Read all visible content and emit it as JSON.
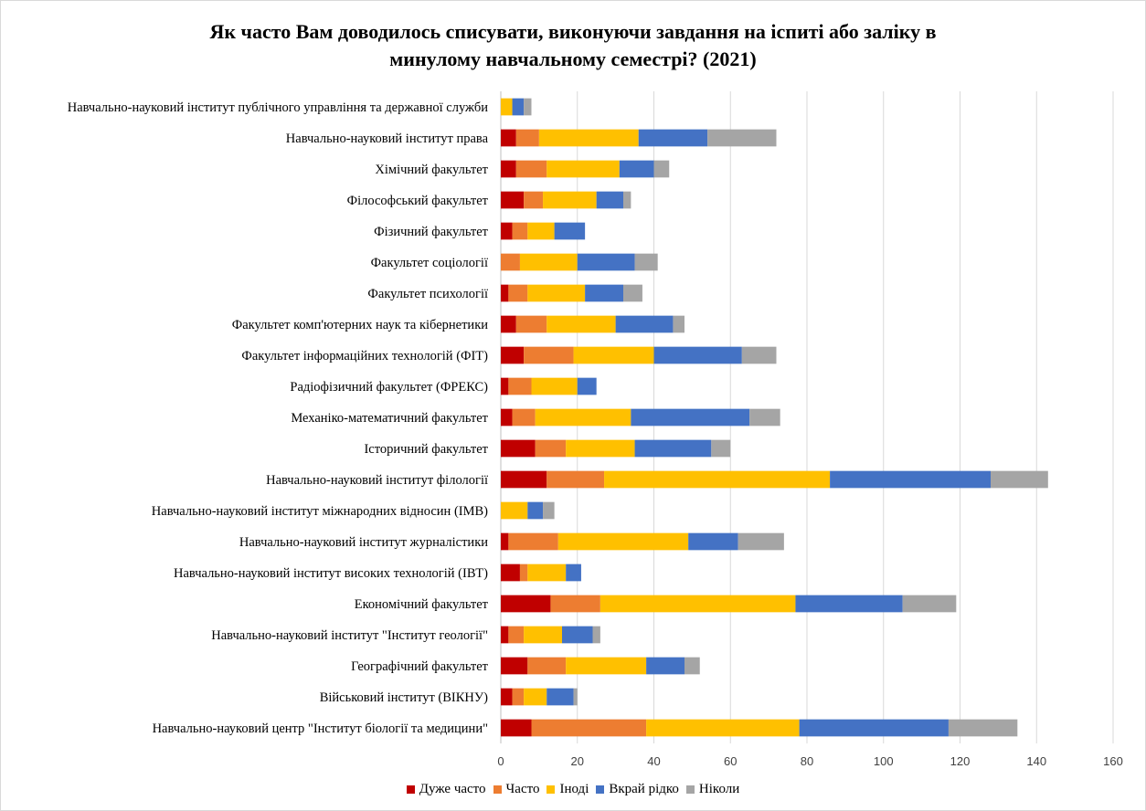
{
  "chart_data": {
    "type": "bar",
    "orientation": "horizontal",
    "stacked": true,
    "title_line1": "Як часто Вам доводилось списувати, виконуючи завдання на іспиті або заліку в",
    "title_line2": "минулому навчальному семестрі? (2021)",
    "xlim": [
      0,
      160
    ],
    "xticks": [
      0,
      20,
      40,
      60,
      80,
      100,
      120,
      140,
      160
    ],
    "grid": true,
    "legend_position": "bottom",
    "categories": [
      "Навчально-науковий інститут публічного управління та державної служби",
      "Навчально-науковий інститут права",
      "Хімічний факультет",
      "Філософський факультет",
      "Фізичний факультет",
      "Факультет соціології",
      "Факультет психології",
      "Факультет комп'ютерних наук та кібернетики",
      "Факультет інформаційних технологій (ФІТ)",
      "Радіофізичний факультет (ФРЕКС)",
      "Механіко-математичний факультет",
      "Історичний факультет",
      "Навчально-науковий інститут філології",
      "Навчально-науковий інститут міжнародних відносин (ІМВ)",
      "Навчально-науковий інститут журналістики",
      "Навчально-науковий інститут високих технологій (ІВТ)",
      "Економічний факультет",
      "Навчально-науковий інститут \"Інститут геології\"",
      "Географічний факультет",
      "Військовий інститут (ВІКНУ)",
      "Навчально-науковий центр \"Інститут біології та медицини\""
    ],
    "series": [
      {
        "name": "Дуже часто",
        "color": "#c00000",
        "values": [
          0,
          4,
          4,
          6,
          3,
          0,
          2,
          4,
          6,
          2,
          3,
          9,
          12,
          0,
          2,
          5,
          13,
          2,
          7,
          3,
          8
        ]
      },
      {
        "name": "Часто",
        "color": "#ed7d31",
        "values": [
          0,
          6,
          8,
          5,
          4,
          5,
          5,
          8,
          13,
          6,
          6,
          8,
          15,
          0,
          13,
          2,
          13,
          4,
          10,
          3,
          30
        ]
      },
      {
        "name": "Іноді",
        "color": "#ffc000",
        "values": [
          3,
          26,
          19,
          14,
          7,
          15,
          15,
          18,
          21,
          12,
          25,
          18,
          59,
          7,
          34,
          10,
          51,
          10,
          21,
          6,
          40
        ]
      },
      {
        "name": "Вкрай рідко",
        "color": "#4472c4",
        "values": [
          3,
          18,
          9,
          7,
          8,
          15,
          10,
          15,
          23,
          5,
          31,
          20,
          42,
          4,
          13,
          4,
          28,
          8,
          10,
          7,
          39
        ]
      },
      {
        "name": "Ніколи",
        "color": "#a5a5a5",
        "values": [
          2,
          18,
          4,
          2,
          0,
          6,
          5,
          3,
          9,
          0,
          8,
          5,
          15,
          3,
          12,
          0,
          14,
          2,
          4,
          1,
          18
        ]
      }
    ]
  }
}
